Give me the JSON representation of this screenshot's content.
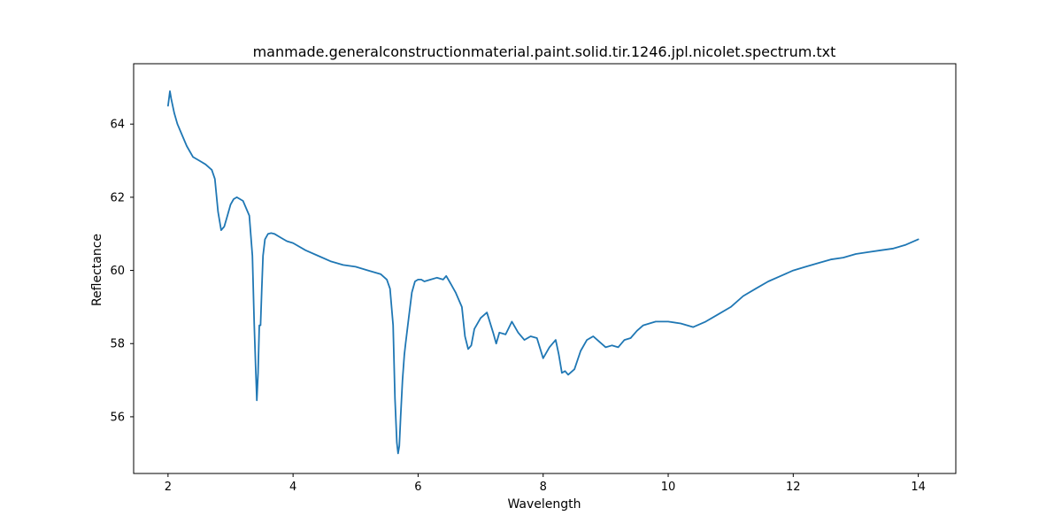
{
  "chart_data": {
    "type": "line",
    "title": "manmade.generalconstructionmaterial.paint.solid.tir.1246.jpl.nicolet.spectrum.txt",
    "xlabel": "Wavelength",
    "ylabel": "Reflectance",
    "xlim": [
      1.45,
      14.6
    ],
    "ylim": [
      54.45,
      65.65
    ],
    "xticks": [
      2,
      4,
      6,
      8,
      10,
      12,
      14
    ],
    "xtick_labels": [
      "2",
      "4",
      "6",
      "8",
      "10",
      "12",
      "14"
    ],
    "yticks": [
      56,
      58,
      60,
      62,
      64
    ],
    "ytick_labels": [
      "56",
      "58",
      "60",
      "62",
      "64"
    ],
    "grid": false,
    "legend": "none",
    "series": [
      {
        "color": "#1f77b4",
        "x": [
          2.0,
          2.03,
          2.05,
          2.1,
          2.15,
          2.2,
          2.3,
          2.4,
          2.5,
          2.6,
          2.7,
          2.75,
          2.8,
          2.85,
          2.9,
          2.95,
          3.0,
          3.05,
          3.1,
          3.2,
          3.3,
          3.35,
          3.38,
          3.4,
          3.42,
          3.44,
          3.46,
          3.48,
          3.5,
          3.52,
          3.55,
          3.6,
          3.65,
          3.7,
          3.8,
          3.9,
          4.0,
          4.2,
          4.4,
          4.6,
          4.8,
          5.0,
          5.2,
          5.4,
          5.5,
          5.55,
          5.6,
          5.63,
          5.66,
          5.68,
          5.7,
          5.72,
          5.75,
          5.78,
          5.8,
          5.85,
          5.9,
          5.95,
          6.0,
          6.05,
          6.1,
          6.2,
          6.3,
          6.4,
          6.45,
          6.5,
          6.6,
          6.7,
          6.75,
          6.8,
          6.85,
          6.9,
          7.0,
          7.1,
          7.2,
          7.25,
          7.3,
          7.4,
          7.5,
          7.6,
          7.7,
          7.8,
          7.9,
          8.0,
          8.1,
          8.2,
          8.25,
          8.3,
          8.35,
          8.4,
          8.5,
          8.6,
          8.7,
          8.8,
          8.9,
          9.0,
          9.1,
          9.2,
          9.3,
          9.4,
          9.5,
          9.6,
          9.7,
          9.8,
          10.0,
          10.2,
          10.4,
          10.6,
          10.8,
          11.0,
          11.2,
          11.4,
          11.6,
          11.8,
          12.0,
          12.2,
          12.4,
          12.6,
          12.8,
          13.0,
          13.2,
          13.4,
          13.6,
          13.8,
          14.0
        ],
        "y": [
          64.5,
          64.9,
          64.7,
          64.3,
          64.0,
          63.8,
          63.4,
          63.1,
          63.0,
          62.9,
          62.75,
          62.5,
          61.6,
          61.1,
          61.2,
          61.5,
          61.8,
          61.95,
          62.0,
          61.9,
          61.5,
          60.4,
          58.5,
          57.4,
          56.45,
          57.2,
          58.5,
          58.5,
          59.5,
          60.4,
          60.85,
          61.0,
          61.02,
          61.0,
          60.9,
          60.8,
          60.75,
          60.55,
          60.4,
          60.25,
          60.15,
          60.1,
          60.0,
          59.9,
          59.75,
          59.5,
          58.5,
          56.5,
          55.3,
          55.0,
          55.2,
          56.0,
          57.0,
          57.7,
          58.0,
          58.7,
          59.4,
          59.7,
          59.75,
          59.75,
          59.7,
          59.75,
          59.8,
          59.75,
          59.85,
          59.7,
          59.4,
          59.0,
          58.2,
          57.85,
          57.95,
          58.4,
          58.7,
          58.85,
          58.3,
          58.0,
          58.3,
          58.25,
          58.6,
          58.3,
          58.1,
          58.2,
          58.15,
          57.6,
          57.9,
          58.1,
          57.7,
          57.2,
          57.25,
          57.15,
          57.3,
          57.8,
          58.1,
          58.2,
          58.05,
          57.9,
          57.95,
          57.9,
          58.1,
          58.15,
          58.35,
          58.5,
          58.55,
          58.6,
          58.6,
          58.55,
          58.45,
          58.6,
          58.8,
          59.0,
          59.3,
          59.5,
          59.7,
          59.85,
          60.0,
          60.1,
          60.2,
          60.3,
          60.35,
          60.45,
          60.5,
          60.55,
          60.6,
          60.7,
          60.85
        ]
      }
    ]
  }
}
